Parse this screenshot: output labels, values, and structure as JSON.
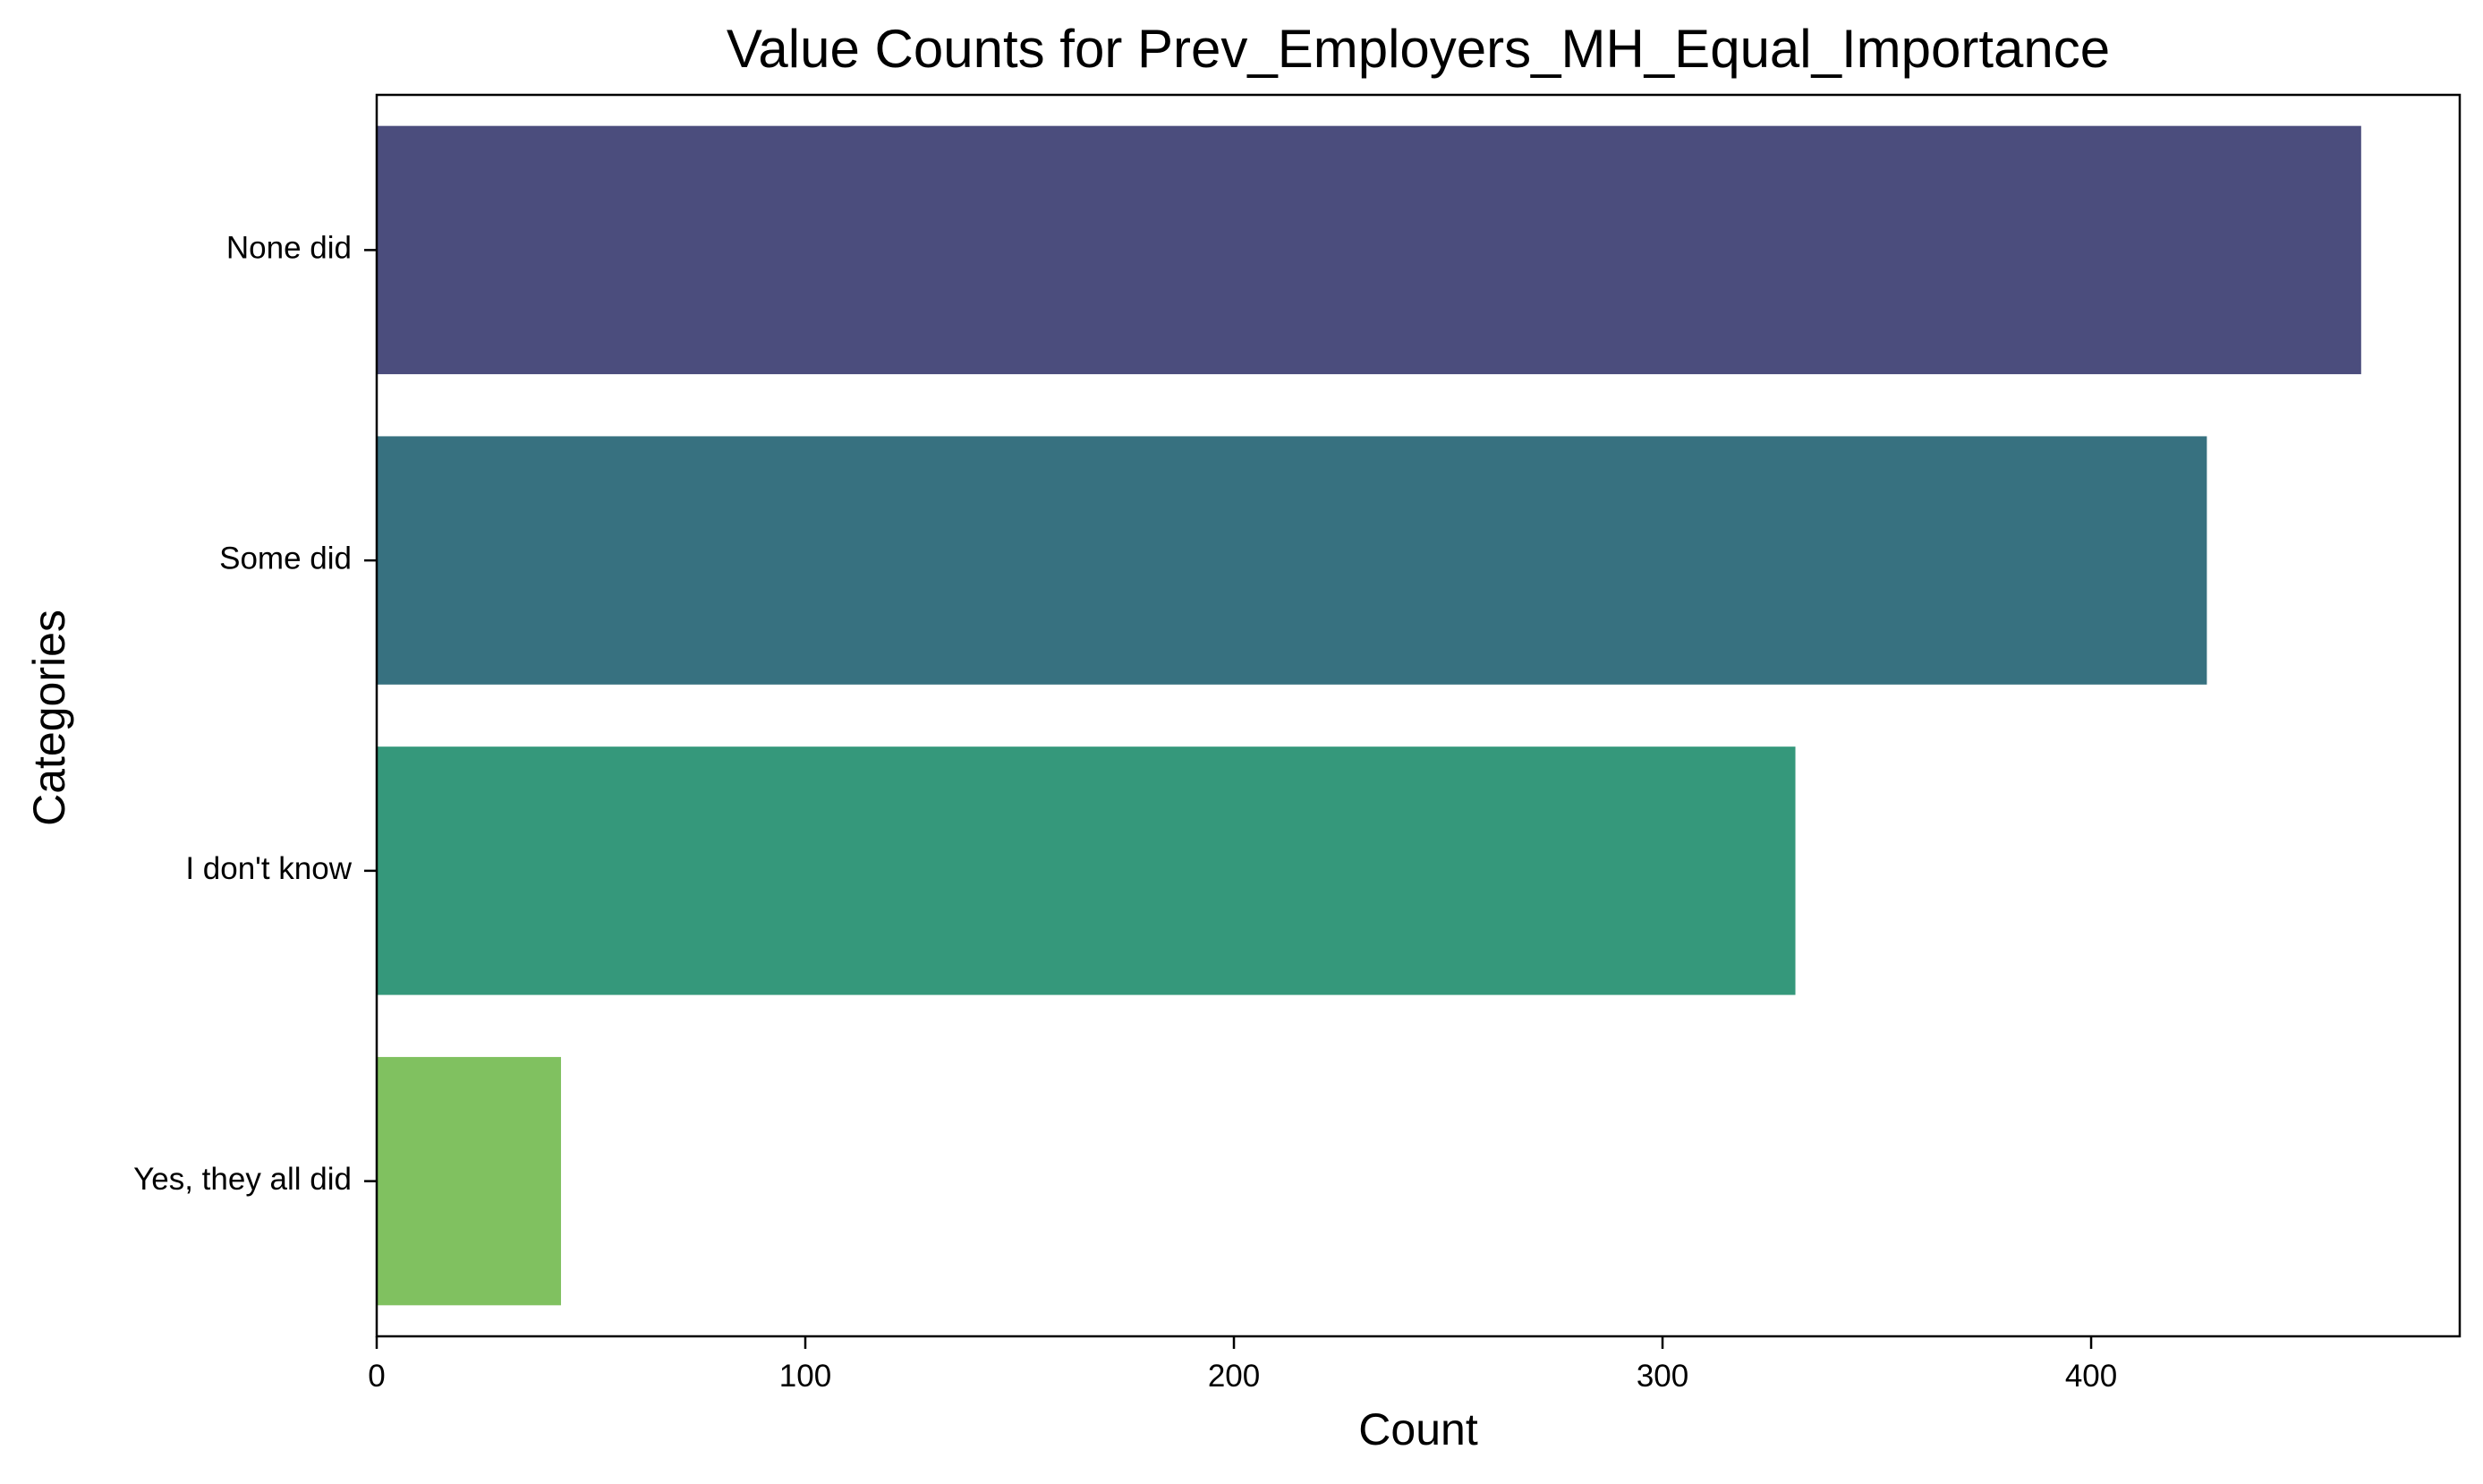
{
  "chart_data": {
    "type": "bar",
    "orientation": "horizontal",
    "title": "Value Counts for Prev_Employers_MH_Equal_Importance",
    "xlabel": "Count",
    "ylabel": "Categories",
    "categories": [
      "None did",
      "Some did",
      "I don't know",
      "Yes, they all did"
    ],
    "values": [
      463,
      427,
      331,
      43
    ],
    "colors": [
      "#4b4d7d",
      "#377180",
      "#35987b",
      "#80c160"
    ],
    "xlim": [
      0,
      486
    ],
    "xticks": [
      0,
      100,
      200,
      300,
      400
    ],
    "grid": false
  }
}
